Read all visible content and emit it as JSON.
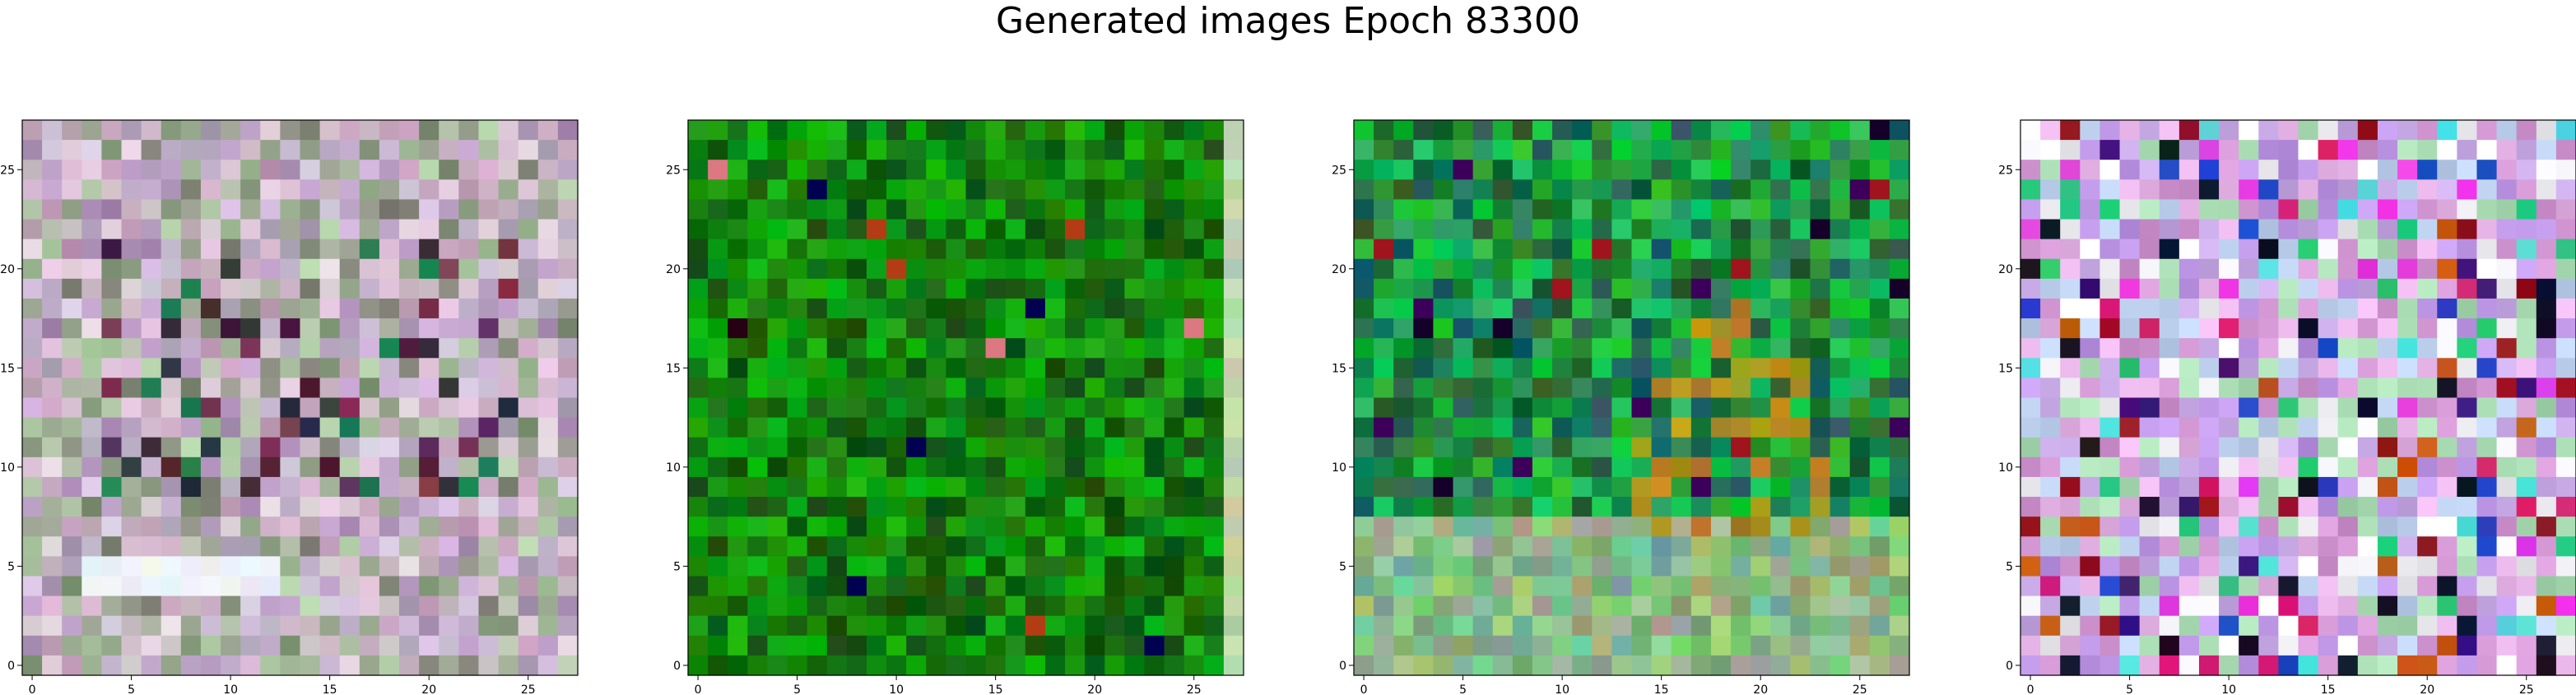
{
  "title": "Generated images Epoch 83300",
  "chart_data": {
    "type": "heatmap",
    "title": "Generated images Epoch 83300",
    "grid": false,
    "panels": [
      {
        "name": "image-1",
        "palette": "pastel-mixed",
        "shape": [
          28,
          28
        ],
        "xticks": [
          0,
          5,
          10,
          15,
          20,
          25
        ],
        "yticks": [
          0,
          5,
          10,
          15,
          20,
          25
        ],
        "xlim": [
          -0.5,
          27.5
        ],
        "ylim": [
          27.5,
          -0.5
        ]
      },
      {
        "name": "image-2",
        "palette": "green",
        "shape": [
          28,
          28
        ],
        "xticks": [
          0,
          5,
          10,
          15,
          20,
          25
        ],
        "yticks": [
          0,
          5,
          10,
          15,
          20,
          25
        ],
        "xlim": [
          -0.5,
          27.5
        ],
        "ylim": [
          27.5,
          -0.5
        ]
      },
      {
        "name": "image-3",
        "palette": "green-brown",
        "shape": [
          28,
          28
        ],
        "xticks": [
          0,
          5,
          10,
          15,
          20,
          25
        ],
        "yticks": [
          0,
          5,
          10,
          15,
          20,
          25
        ],
        "xlim": [
          -0.5,
          27.5
        ],
        "ylim": [
          27.5,
          -0.5
        ]
      },
      {
        "name": "image-4",
        "palette": "pastel-saturated",
        "shape": [
          28,
          28
        ],
        "xticks": [
          0,
          5,
          10,
          15,
          20,
          25
        ],
        "yticks": [
          0,
          5,
          10,
          15,
          20,
          25
        ],
        "xlim": [
          -0.5,
          27.5
        ],
        "ylim": [
          27.5,
          -0.5
        ]
      }
    ]
  }
}
